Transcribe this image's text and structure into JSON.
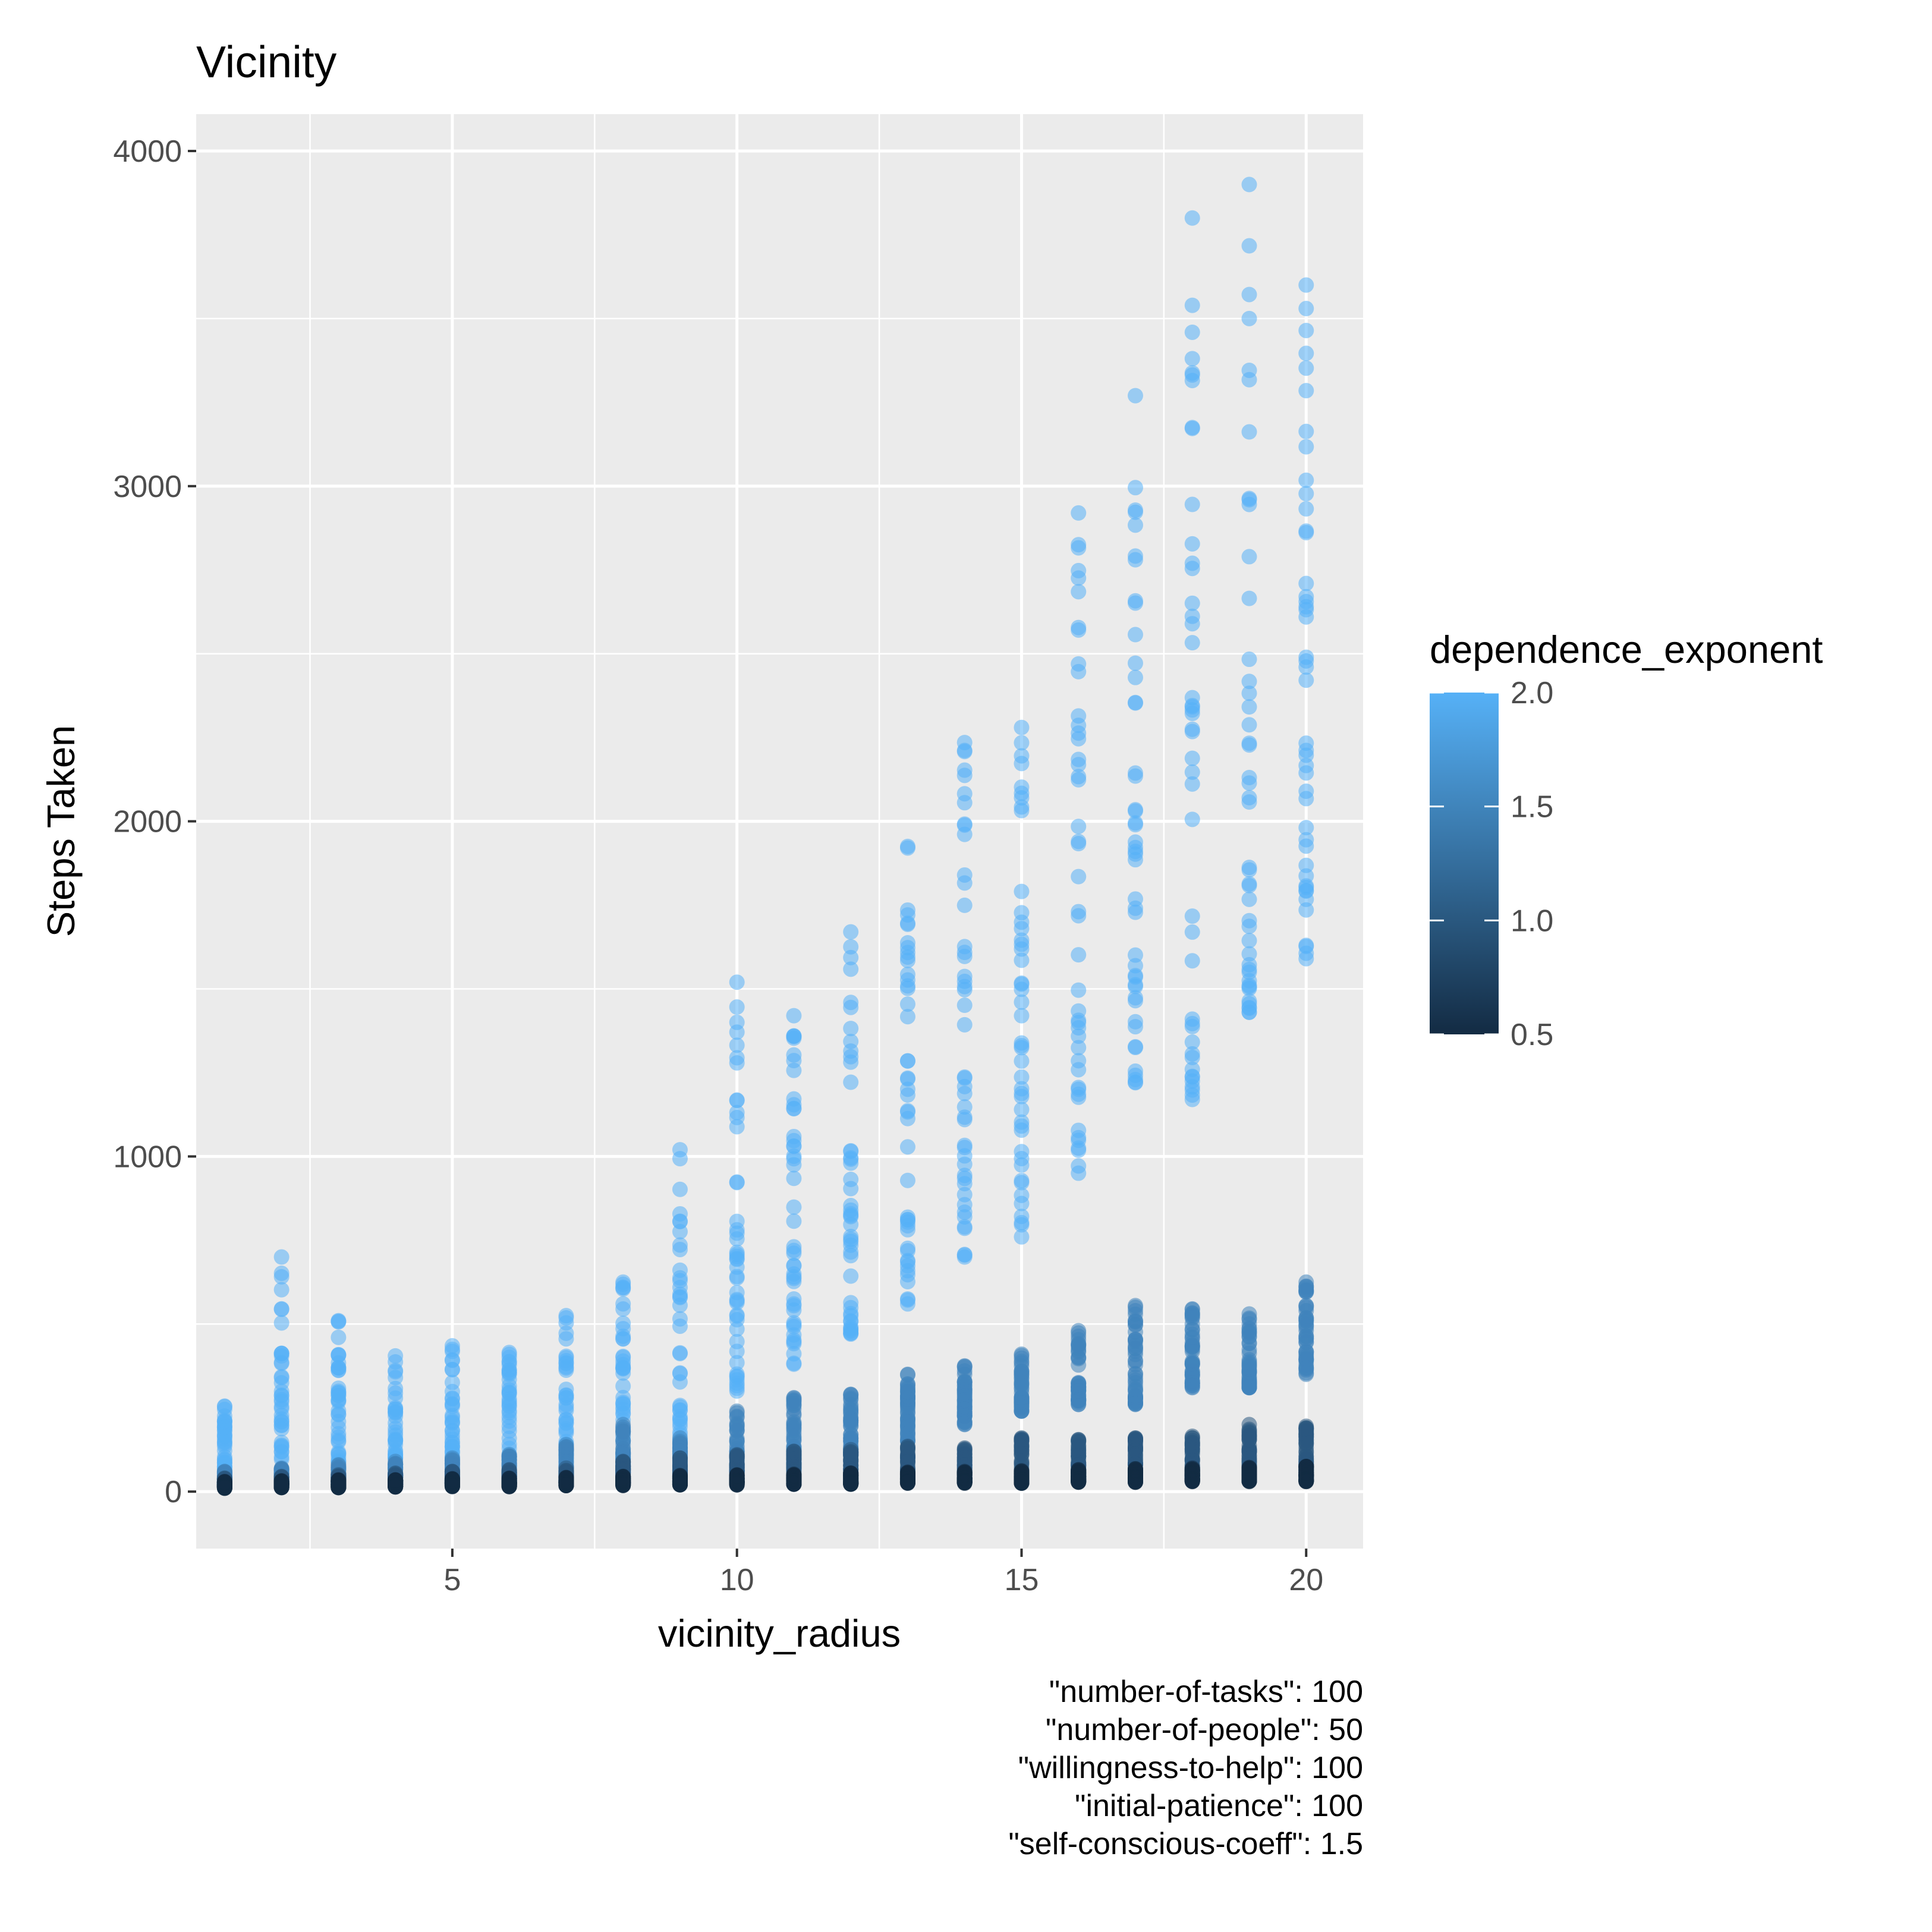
{
  "chart_data": {
    "type": "scatter",
    "title": "Vicinity",
    "xlabel": "vicinity_radius",
    "ylabel": "Steps Taken",
    "xlim": [
      0.5,
      21.0
    ],
    "ylim": [
      -170,
      4110
    ],
    "x_ticks": [
      5,
      10,
      15,
      20
    ],
    "x_tick_labels": [
      "5",
      "10",
      "15",
      "20"
    ],
    "y_ticks": [
      0,
      1000,
      2000,
      3000,
      4000
    ],
    "y_tick_labels": [
      "0",
      "1000",
      "2000",
      "3000",
      "4000"
    ],
    "grid": true,
    "legend": {
      "title": "dependence_exponent",
      "placement": "right",
      "type": "colorbar",
      "range": [
        0.5,
        2.0
      ],
      "ticks": [
        0.5,
        1.0,
        1.5,
        2.0
      ],
      "tick_labels": [
        "0.5",
        "1.0",
        "1.5",
        "2.0"
      ],
      "color_low": "#132b43",
      "color_high": "#56b1f7"
    },
    "point_alpha": 0.55,
    "series": [
      {
        "exponent": 2.0,
        "x": [
          1,
          2,
          3,
          4,
          5,
          6,
          7,
          8,
          9,
          10,
          11,
          12,
          13,
          14,
          15,
          16,
          17,
          18,
          19,
          20
        ],
        "y_min": [
          20,
          25,
          25,
          30,
          30,
          40,
          50,
          70,
          110,
          300,
          380,
          470,
          560,
          700,
          760,
          950,
          1220,
          1170,
          1430,
          1590
        ],
        "y_max": [
          255,
          700,
          510,
          405,
          435,
          415,
          525,
          625,
          1020,
          1520,
          1420,
          1670,
          1925,
          2235,
          2280,
          2920,
          3270,
          3800,
          3900,
          3600
        ]
      },
      {
        "exponent": 1.5,
        "x": [
          1,
          2,
          3,
          4,
          5,
          6,
          7,
          8,
          9,
          10,
          11,
          12,
          13,
          14,
          15,
          16,
          17,
          18,
          19,
          20
        ],
        "y_min": [
          20,
          20,
          20,
          20,
          25,
          25,
          30,
          35,
          40,
          60,
          70,
          110,
          150,
          200,
          240,
          260,
          260,
          310,
          310,
          350
        ],
        "y_max": [
          60,
          70,
          80,
          90,
          100,
          110,
          140,
          200,
          160,
          240,
          280,
          290,
          350,
          375,
          410,
          480,
          555,
          545,
          530,
          625
        ]
      },
      {
        "exponent": 1.0,
        "x": [
          1,
          2,
          3,
          4,
          5,
          6,
          7,
          8,
          9,
          10,
          11,
          12,
          13,
          14,
          15,
          16,
          17,
          18,
          19,
          20
        ],
        "y_min": [
          15,
          18,
          18,
          20,
          20,
          22,
          25,
          25,
          28,
          28,
          30,
          30,
          35,
          35,
          38,
          38,
          40,
          40,
          42,
          45
        ],
        "y_max": [
          40,
          45,
          50,
          55,
          60,
          65,
          70,
          90,
          100,
          110,
          120,
          125,
          135,
          130,
          160,
          155,
          160,
          165,
          200,
          195
        ]
      },
      {
        "exponent": 0.5,
        "x": [
          1,
          2,
          3,
          4,
          5,
          6,
          7,
          8,
          9,
          10,
          11,
          12,
          13,
          14,
          15,
          16,
          17,
          18,
          19,
          20
        ],
        "y_min": [
          10,
          12,
          12,
          14,
          15,
          15,
          18,
          18,
          20,
          20,
          22,
          22,
          25,
          25,
          25,
          28,
          28,
          30,
          30,
          30
        ],
        "y_max": [
          30,
          32,
          35,
          35,
          38,
          40,
          42,
          45,
          48,
          50,
          52,
          55,
          58,
          60,
          62,
          65,
          68,
          70,
          72,
          75
        ]
      }
    ]
  },
  "caption": [
    "\"number-of-tasks\": 100",
    "\"number-of-people\": 50",
    "\"willingness-to-help\": 100",
    "\"initial-patience\": 100",
    "\"self-conscious-coeff\": 1.5"
  ]
}
